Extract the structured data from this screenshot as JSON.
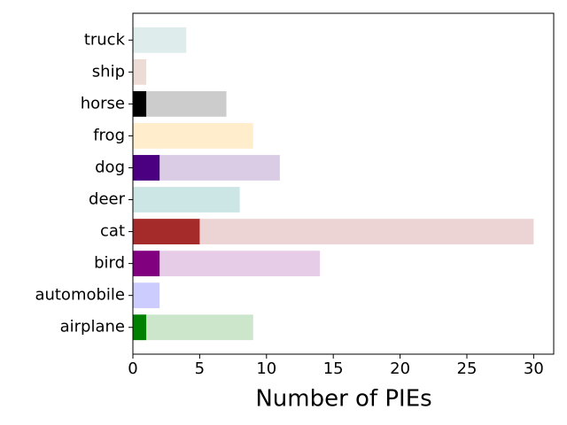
{
  "chart_data": {
    "type": "bar",
    "orientation": "horizontal",
    "overlap": true,
    "xlabel": "Number of PIEs",
    "categories": [
      "airplane",
      "automobile",
      "bird",
      "cat",
      "deer",
      "dog",
      "frog",
      "horse",
      "ship",
      "truck"
    ],
    "colors": [
      "#008000",
      "#0000ff",
      "#800080",
      "#a52a2a",
      "#008080",
      "#4b0082",
      "#ffa500",
      "#000000",
      "#a0522d",
      "#5f9ea0"
    ],
    "series": [
      {
        "alpha": 0.2,
        "values": [
          9,
          2,
          14,
          30,
          8,
          11,
          9,
          7,
          1,
          4
        ]
      },
      {
        "alpha": 1,
        "values": [
          1,
          0,
          2,
          5,
          0,
          2,
          0,
          1,
          0,
          0
        ]
      }
    ],
    "xlim": [
      0,
      31.5
    ],
    "xticks": [
      0,
      5,
      10,
      15,
      20,
      25,
      30
    ]
  }
}
